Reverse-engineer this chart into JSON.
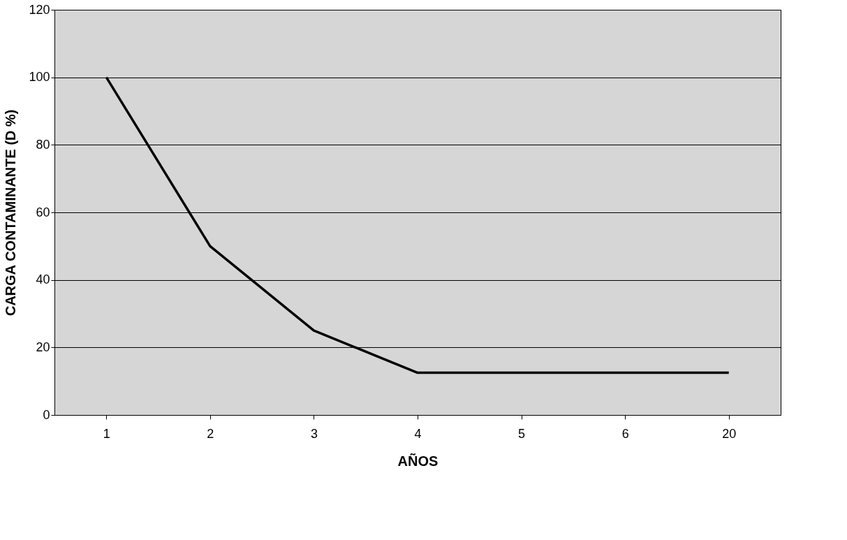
{
  "chart_data": {
    "type": "line",
    "xlabel": "AÑOS",
    "ylabel": "CARGA CONTAMINANTE (D %)",
    "categories": [
      "1",
      "2",
      "3",
      "4",
      "5",
      "6",
      "20"
    ],
    "series": [
      {
        "color": "#000000",
        "values": [
          100,
          50,
          25,
          12.5,
          12.5,
          12.5,
          12.5
        ]
      }
    ],
    "ylim": [
      0,
      120
    ],
    "yticks": [
      0,
      20,
      40,
      60,
      80,
      100,
      120
    ],
    "grid": "y",
    "marker": "none",
    "line_style": "solid"
  }
}
